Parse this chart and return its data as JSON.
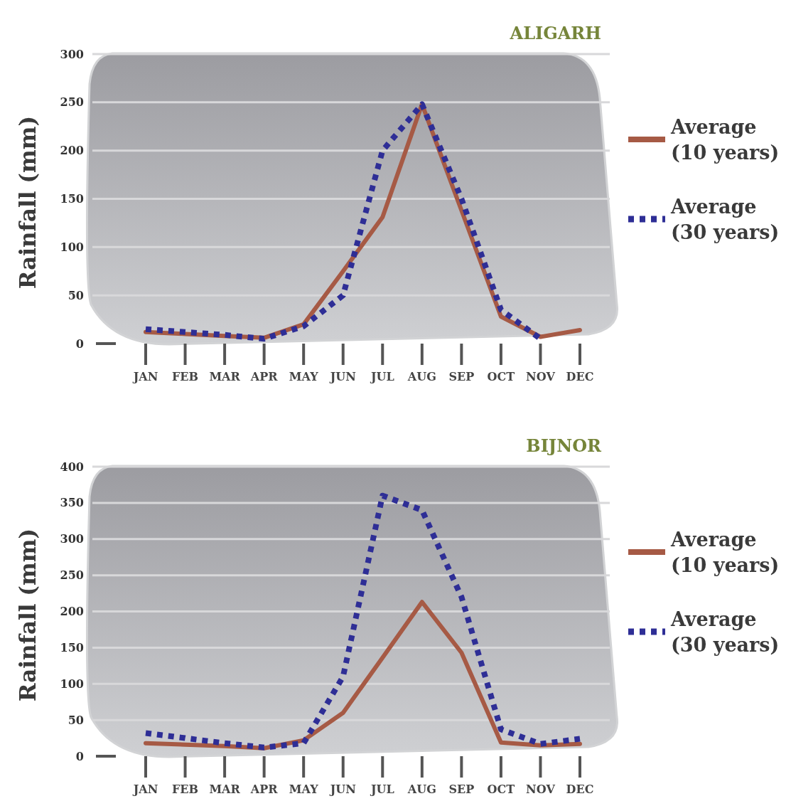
{
  "chart_data": [
    {
      "type": "line",
      "title": "ALIGARH",
      "ylabel": "Rainfall (mm)",
      "categories": [
        "JAN",
        "FEB",
        "MAR",
        "APR",
        "MAY",
        "JUN",
        "JUL",
        "AUG",
        "SEP",
        "OCT",
        "NOV",
        "DEC"
      ],
      "ylim": [
        0,
        300
      ],
      "yticks": [
        0,
        50,
        100,
        150,
        200,
        250,
        300
      ],
      "grid": "y",
      "legend": "right",
      "marker": "none",
      "series": [
        {
          "name": "Average (10 years)",
          "color": "#a65a45",
          "line_style": "solid",
          "values": [
            12,
            10,
            8,
            6,
            20,
            75,
            131,
            248,
            138,
            28,
            7,
            14
          ]
        },
        {
          "name": "Average (30 years)",
          "color": "#2e2e96",
          "line_style": "dotted",
          "values": [
            15,
            12,
            9,
            5,
            18,
            50,
            200,
            248,
            150,
            35,
            5,
            null
          ]
        }
      ]
    },
    {
      "type": "line",
      "title": "BIJNOR",
      "ylabel": "Rainfall (mm)",
      "categories": [
        "JAN",
        "FEB",
        "MAR",
        "APR",
        "MAY",
        "JUN",
        "JUL",
        "AUG",
        "SEP",
        "OCT",
        "NOV",
        "DEC"
      ],
      "ylim": [
        0,
        400
      ],
      "yticks": [
        0,
        50,
        100,
        150,
        200,
        250,
        300,
        350,
        400
      ],
      "grid": "y",
      "legend": "right",
      "marker": "none",
      "series": [
        {
          "name": "Average (10 years)",
          "color": "#a65a45",
          "line_style": "solid",
          "values": [
            18,
            16,
            14,
            11,
            22,
            60,
            136,
            213,
            143,
            19,
            15,
            17
          ]
        },
        {
          "name": "Average (30 years)",
          "color": "#2e2e96",
          "line_style": "dotted",
          "values": [
            32,
            25,
            18,
            12,
            18,
            110,
            360,
            340,
            220,
            37,
            17,
            24
          ]
        }
      ]
    }
  ]
}
